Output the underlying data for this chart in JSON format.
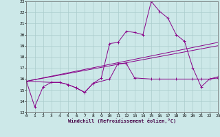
{
  "xlabel": "Windchill (Refroidissement éolien,°C)",
  "bg_color": "#cce8e8",
  "line_color": "#880088",
  "grid_color": "#aacccc",
  "xmin": 0,
  "xmax": 23,
  "ymin": 13,
  "ymax": 23,
  "line1_x": [
    0,
    1,
    2,
    3,
    4,
    5,
    6,
    7,
    8,
    9,
    10,
    11,
    12,
    13,
    14,
    15,
    16,
    17,
    18,
    19,
    20,
    21,
    22,
    23
  ],
  "line1_y": [
    15.8,
    13.5,
    15.3,
    15.7,
    15.7,
    15.5,
    15.2,
    14.8,
    15.6,
    16.1,
    19.2,
    19.3,
    20.3,
    20.2,
    20.0,
    23.0,
    22.1,
    21.5,
    20.0,
    19.4,
    17.0,
    15.3,
    16.0,
    16.1
  ],
  "line2_x": [
    0,
    3,
    4,
    5,
    6,
    7,
    8,
    10,
    11,
    12,
    13,
    15,
    16,
    18,
    20,
    21,
    22,
    23
  ],
  "line2_y": [
    15.8,
    15.7,
    15.7,
    15.5,
    15.2,
    14.8,
    15.6,
    16.0,
    17.4,
    17.4,
    16.1,
    16.0,
    16.0,
    16.0,
    16.0,
    16.0,
    16.0,
    16.2
  ],
  "trend1_x": [
    0,
    23
  ],
  "trend1_y": [
    15.8,
    19.3
  ],
  "trend2_x": [
    0,
    23
  ],
  "trend2_y": [
    15.8,
    19.0
  ]
}
